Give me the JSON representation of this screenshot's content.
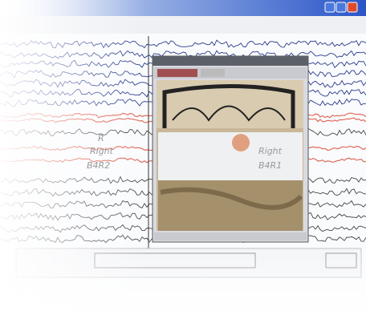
{
  "left_labels": [
    "R",
    "Right",
    "B4R2"
  ],
  "right_labels": [
    "Right",
    "B4R1"
  ]
}
